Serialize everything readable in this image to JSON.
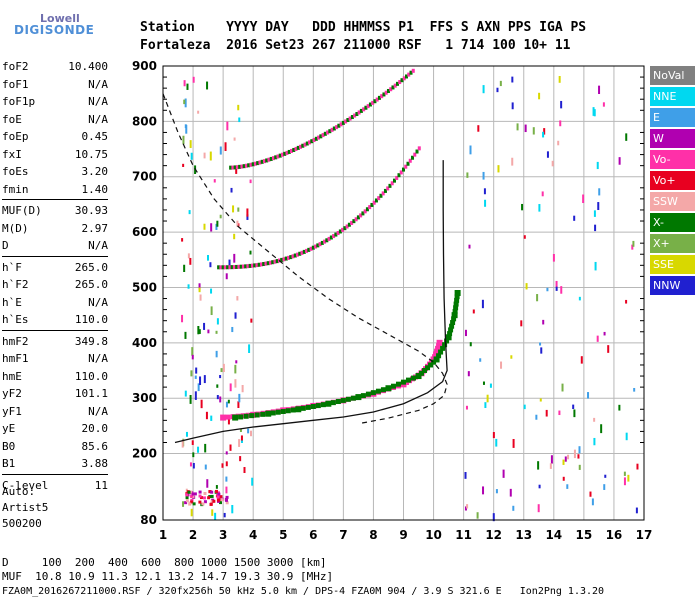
{
  "logo": {
    "line1": "Lowell",
    "line2": "DIGISONDE"
  },
  "header": {
    "row1": "Station    YYYY DAY   DDD HHMMSS P1  FFS S AXN PPS IGA PS",
    "row2": "Fortaleza  2016 Set23 267 211000 RSF   1 714 100 10+ 11"
  },
  "params": [
    {
      "name": "foF2",
      "value": "10.400"
    },
    {
      "name": "foF1",
      "value": "N/A"
    },
    {
      "name": "foF1p",
      "value": "N/A"
    },
    {
      "name": "foE",
      "value": "N/A"
    },
    {
      "name": "foEp",
      "value": "0.45"
    },
    {
      "name": "fxI",
      "value": "10.75"
    },
    {
      "name": "foEs",
      "value": "3.20"
    },
    {
      "name": "fmin",
      "value": "1.40"
    },
    {
      "name": "MUF(D)",
      "value": "30.93"
    },
    {
      "name": "M(D)",
      "value": "2.97"
    },
    {
      "name": "D",
      "value": "N/A"
    },
    {
      "name": "h`F",
      "value": "265.0"
    },
    {
      "name": "h`F2",
      "value": "265.0"
    },
    {
      "name": "h`E",
      "value": "N/A"
    },
    {
      "name": "h`Es",
      "value": "110.0"
    },
    {
      "name": "hmF2",
      "value": "349.8"
    },
    {
      "name": "hmF1",
      "value": "N/A"
    },
    {
      "name": "hmE",
      "value": "110.0"
    },
    {
      "name": "yF2",
      "value": "101.1"
    },
    {
      "name": "yF1",
      "value": "N/A"
    },
    {
      "name": "yE",
      "value": "20.0"
    },
    {
      "name": "B0",
      "value": "85.6"
    },
    {
      "name": "B1",
      "value": "3.88"
    },
    {
      "name": "C-level",
      "value": "11"
    }
  ],
  "side_notes": {
    "auto": "Auto:",
    "artist": "Artist5",
    "code": "500200"
  },
  "legend": [
    {
      "label": "NoVal",
      "color": "#808080"
    },
    {
      "label": "NNE",
      "color": "#00d8f0"
    },
    {
      "label": "E",
      "color": "#3f9fe8"
    },
    {
      "label": "W",
      "color": "#b000b0"
    },
    {
      "label": "Vo-",
      "color": "#ff30a8"
    },
    {
      "label": "Vo+",
      "color": "#e80020"
    },
    {
      "label": "SSW",
      "color": "#f4a8a8"
    },
    {
      "label": "X-",
      "color": "#007800"
    },
    {
      "label": "X+",
      "color": "#78b048"
    },
    {
      "label": "SSE",
      "color": "#d8d800"
    },
    {
      "label": "NNW",
      "color": "#2020d0"
    }
  ],
  "footer": {
    "line1": "D     100  200  400  600  800 1000 1500 3000 [km]",
    "line2": "MUF  10.8 10.9 11.3 12.1 13.2 14.7 19.3 30.9 [MHz]",
    "line3": "FZA0M_2016267211000.RSF / 320fx256h 50 kHz 5.0 km / DPS-4 FZA0M 904 / 3.9 S 321.6 E   Ion2Png 1.3.20"
  },
  "chart_data": {
    "type": "scatter",
    "xlim": [
      1,
      17
    ],
    "ylim": [
      80,
      900
    ],
    "x_ticks": [
      1,
      2,
      3,
      4,
      5,
      6,
      7,
      8,
      9,
      10,
      11,
      12,
      13,
      14,
      15,
      16,
      17
    ],
    "y_ticks": [
      80,
      200,
      300,
      400,
      500,
      600,
      700,
      800,
      900
    ],
    "grid": true,
    "series": [
      {
        "name": "Vo-",
        "values": [
          [
            3.0,
            265
          ],
          [
            4.0,
            270
          ],
          [
            5.0,
            278
          ],
          [
            6.0,
            286
          ],
          [
            7.0,
            296
          ],
          [
            8.0,
            308
          ],
          [
            9.0,
            325
          ],
          [
            9.6,
            345
          ],
          [
            10.0,
            370
          ],
          [
            10.2,
            400
          ]
        ]
      },
      {
        "name": "X-",
        "values": [
          [
            3.4,
            265
          ],
          [
            4.5,
            272
          ],
          [
            5.5,
            280
          ],
          [
            6.5,
            290
          ],
          [
            7.5,
            302
          ],
          [
            8.5,
            318
          ],
          [
            9.5,
            340
          ],
          [
            10.1,
            370
          ],
          [
            10.5,
            410
          ],
          [
            10.7,
            450
          ],
          [
            10.8,
            490
          ]
        ]
      }
    ],
    "profile": {
      "name": "profile",
      "values": [
        [
          1.4,
          220
        ],
        [
          2.0,
          228
        ],
        [
          3.0,
          240
        ],
        [
          4.0,
          248
        ],
        [
          5.0,
          254
        ],
        [
          6.0,
          260
        ],
        [
          7.0,
          266
        ],
        [
          8.0,
          275
        ],
        [
          9.0,
          290
        ],
        [
          9.8,
          310
        ],
        [
          10.3,
          330
        ],
        [
          10.45,
          350
        ],
        [
          10.4,
          400
        ],
        [
          10.35,
          480
        ],
        [
          10.33,
          560
        ],
        [
          10.32,
          640
        ],
        [
          10.32,
          730
        ]
      ]
    },
    "dashed_line": {
      "name": "dashed",
      "values": [
        [
          1.0,
          850
        ],
        [
          1.5,
          780
        ],
        [
          2.0,
          720
        ],
        [
          2.7,
          660
        ],
        [
          3.5,
          610
        ],
        [
          4.5,
          565
        ],
        [
          5.5,
          520
        ],
        [
          6.5,
          480
        ],
        [
          7.5,
          445
        ],
        [
          8.5,
          415
        ],
        [
          9.5,
          385
        ],
        [
          10.0,
          365
        ],
        [
          10.3,
          345
        ],
        [
          10.45,
          325
        ],
        [
          10.35,
          305
        ],
        [
          10.0,
          290
        ],
        [
          9.5,
          278
        ],
        [
          8.5,
          264
        ],
        [
          7.5,
          254
        ]
      ]
    }
  }
}
